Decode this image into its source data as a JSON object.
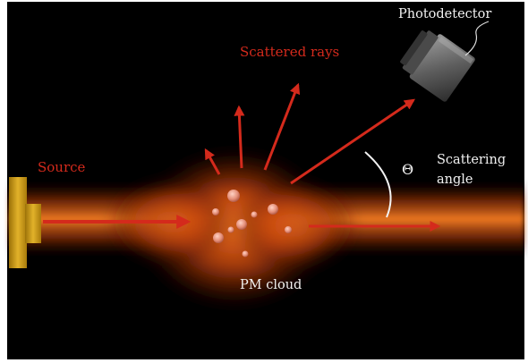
{
  "labels": {
    "photodetector": "Photodetector",
    "scattered_rays": "Scattered rays",
    "source": "Source",
    "theta": "Θ",
    "scattering_angle_line1": "Scattering",
    "scattering_angle_line2": "angle",
    "pm_cloud": "PM cloud"
  },
  "colors": {
    "background": "#000000",
    "beam": "#e8661a",
    "ray": "#d42a1c",
    "label_red": "#d42a1c",
    "label_white": "#f2f2f2",
    "source_block": "#d4a017",
    "particle": "#e89a8a",
    "detector": "#6b6b6b"
  }
}
